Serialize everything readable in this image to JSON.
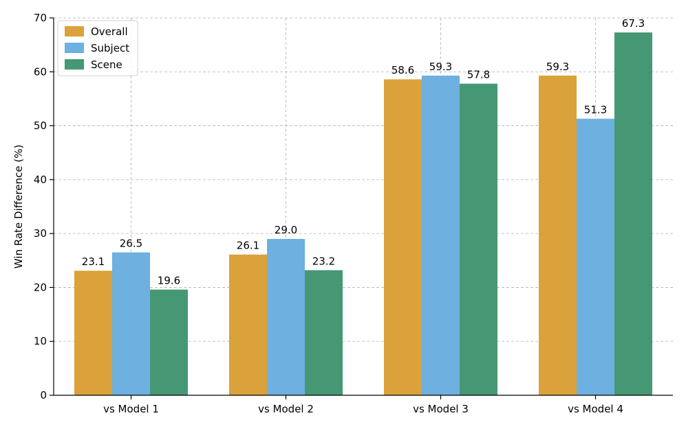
{
  "chart_data": {
    "type": "bar",
    "title": "",
    "xlabel": "",
    "ylabel": "Win Rate Difference (%)",
    "categories": [
      "vs Model 1",
      "vs Model 2",
      "vs Model 3",
      "vs Model 4"
    ],
    "series": [
      {
        "name": "Overall",
        "color": "#DBA13A",
        "values": [
          23.1,
          26.1,
          58.6,
          59.3
        ],
        "labels": [
          "23.1",
          "26.1",
          "58.6",
          "59.3"
        ]
      },
      {
        "name": "Subject",
        "color": "#6EB0E0",
        "values": [
          26.5,
          29.0,
          59.3,
          51.3
        ],
        "labels": [
          "26.5",
          "29.0",
          "59.3",
          "51.3"
        ]
      },
      {
        "name": "Scene",
        "color": "#459873",
        "values": [
          19.6,
          23.2,
          57.8,
          67.3
        ],
        "labels": [
          "19.6",
          "23.2",
          "57.8",
          "67.3"
        ]
      }
    ],
    "ylim": [
      0,
      70
    ],
    "yticks": [
      0,
      10,
      20,
      30,
      40,
      50,
      60,
      70
    ],
    "grid": true,
    "legend_position": "top-left"
  }
}
